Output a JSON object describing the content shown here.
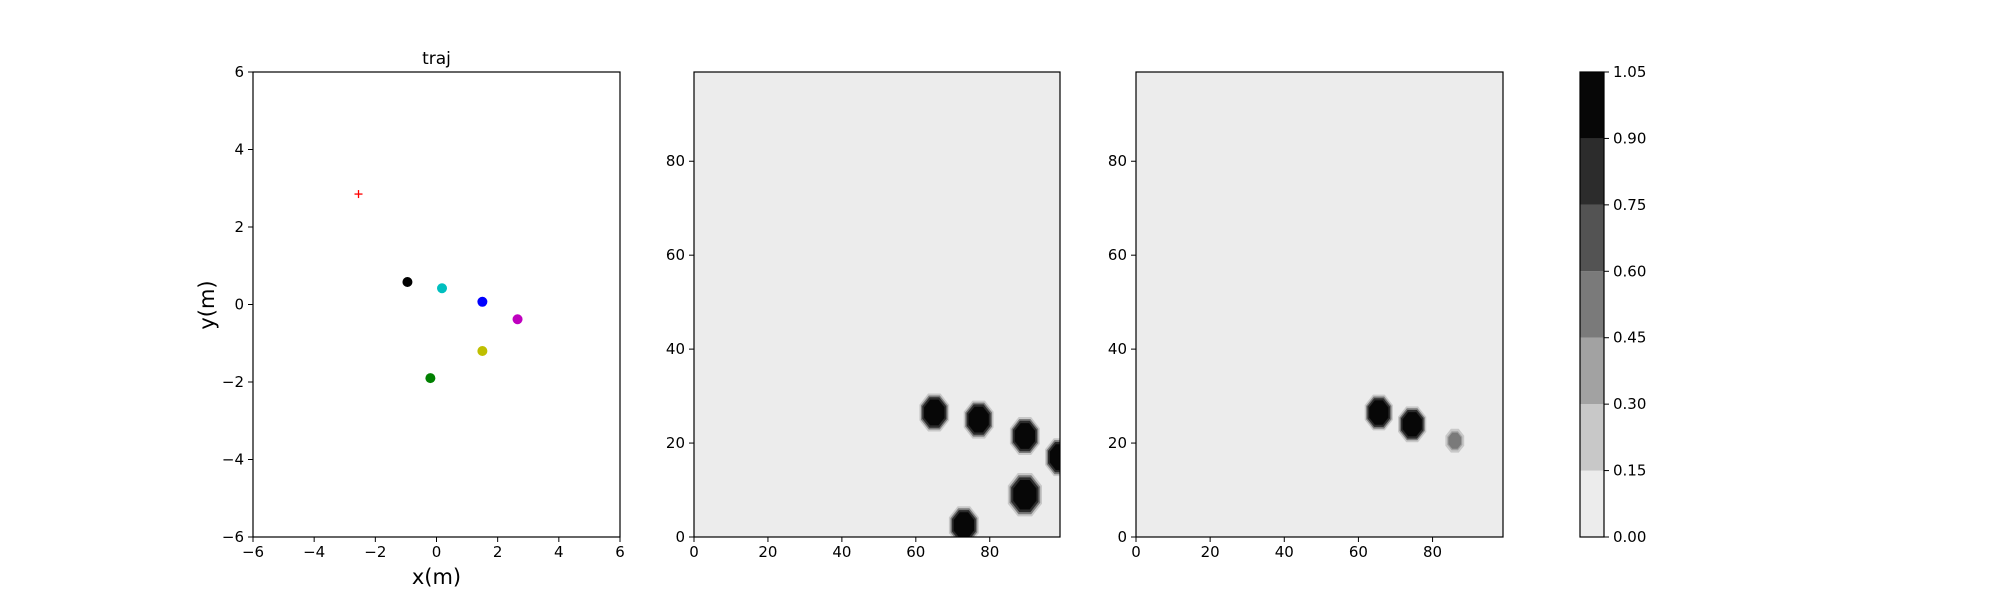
{
  "chart_data": [
    {
      "type": "scatter",
      "title": "traj",
      "xlabel": "x(m)",
      "ylabel": "y(m)",
      "xlim": [
        -6,
        6
      ],
      "ylim": [
        -6,
        6
      ],
      "xticks": [
        -6,
        -4,
        -2,
        0,
        2,
        4,
        6
      ],
      "yticks": [
        -6,
        -4,
        -2,
        0,
        2,
        4,
        6
      ],
      "grid": false,
      "points": [
        {
          "x": -2.55,
          "y": 2.85,
          "marker": "plus",
          "color": "#ff0000"
        },
        {
          "x": -0.95,
          "y": 0.58,
          "marker": "circle",
          "color": "#000000"
        },
        {
          "x": 0.18,
          "y": 0.42,
          "marker": "circle",
          "color": "#00bfbf"
        },
        {
          "x": 1.5,
          "y": 0.07,
          "marker": "circle",
          "color": "#0000ff"
        },
        {
          "x": 2.65,
          "y": -0.38,
          "marker": "circle",
          "color": "#bf00bf"
        },
        {
          "x": 1.5,
          "y": -1.2,
          "marker": "circle",
          "color": "#bfbf00"
        },
        {
          "x": -0.2,
          "y": -1.9,
          "marker": "circle",
          "color": "#008000"
        }
      ]
    },
    {
      "type": "heatmap",
      "title": "",
      "xlim": [
        0,
        99
      ],
      "ylim": [
        0,
        99
      ],
      "xticks": [
        0,
        20,
        40,
        60,
        80
      ],
      "yticks": [
        0,
        20,
        40,
        60,
        80
      ],
      "background_value": 0.05,
      "blobs": [
        {
          "x": 65,
          "y": 26.5,
          "r": 3.5,
          "value": 1.0
        },
        {
          "x": 77,
          "y": 25,
          "r": 3.5,
          "value": 1.0
        },
        {
          "x": 89.5,
          "y": 21.5,
          "r": 3.5,
          "value": 1.0
        },
        {
          "x": 99,
          "y": 17,
          "r": 3.5,
          "value": 1.0
        },
        {
          "x": 89.5,
          "y": 9,
          "r": 4,
          "value": 1.0
        },
        {
          "x": 73,
          "y": 2.5,
          "r": 3.5,
          "value": 1.0
        }
      ]
    },
    {
      "type": "heatmap",
      "title": "",
      "xlim": [
        0,
        99
      ],
      "ylim": [
        0,
        99
      ],
      "xticks": [
        0,
        20,
        40,
        60,
        80
      ],
      "yticks": [
        0,
        20,
        40,
        60,
        80
      ],
      "background_value": 0.05,
      "blobs": [
        {
          "x": 65.5,
          "y": 26.5,
          "r": 3.3,
          "value": 1.0
        },
        {
          "x": 74.5,
          "y": 24,
          "r": 3.3,
          "value": 0.95
        },
        {
          "x": 86,
          "y": 20.5,
          "r": 2.2,
          "value": 0.5
        }
      ]
    }
  ],
  "colorbar": {
    "levels": [
      0.0,
      0.15,
      0.3,
      0.45,
      0.6,
      0.75,
      0.9,
      1.05
    ],
    "tick_labels": [
      "0.00",
      "0.15",
      "0.30",
      "0.45",
      "0.60",
      "0.75",
      "0.90",
      "1.05"
    ],
    "colors": [
      "#ececec",
      "#c8c8c8",
      "#a2a2a2",
      "#7a7a7a",
      "#535353",
      "#2c2c2c",
      "#070707"
    ]
  }
}
